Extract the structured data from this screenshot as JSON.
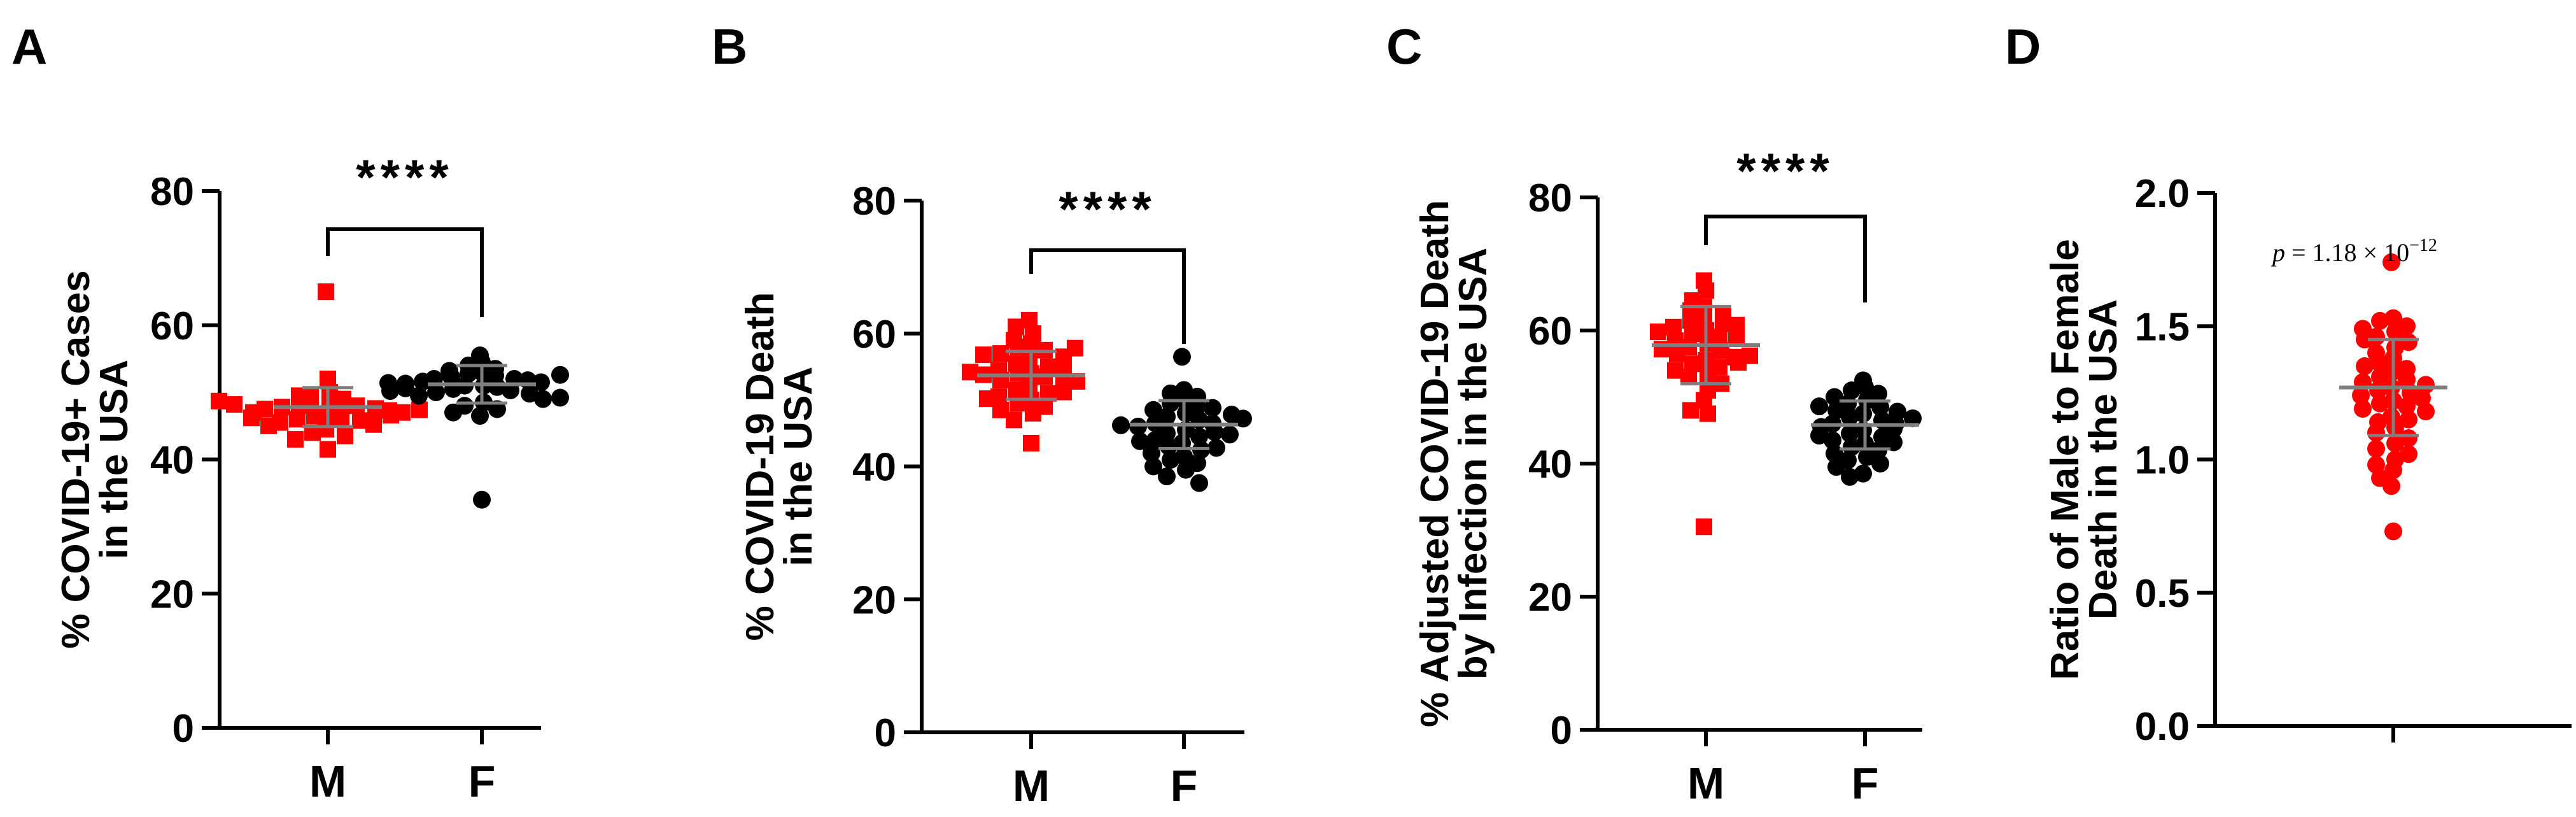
{
  "figure": {
    "colors": {
      "male": "#ff0000",
      "female": "#000000",
      "axis": "#000000",
      "errorbar_on_points": "#7f7f7f"
    }
  },
  "chart_data": [
    {
      "panel": "A",
      "type": "scatter",
      "ylabel_lines": [
        "% COVID-19+ Cases",
        "in the USA"
      ],
      "categories": [
        "M",
        "F"
      ],
      "ylim": [
        0,
        80
      ],
      "yticks": [
        "0",
        "20",
        "40",
        "60",
        "80"
      ],
      "significance": "****",
      "series": [
        {
          "name": "M",
          "color": "#ff0000",
          "marker": "square",
          "mean": 47.8,
          "sd": 2.9,
          "values": [
            65,
            52,
            50,
            49.5,
            49,
            48.8,
            48.5,
            48.3,
            48,
            48,
            47.8,
            47.6,
            47.5,
            47.3,
            47,
            47,
            46.8,
            46.5,
            46.3,
            46,
            45.8,
            45.5,
            45.2,
            45,
            44.5,
            44,
            43.5,
            43,
            41.5,
            49.5,
            48.2,
            47.4,
            46.6,
            48.7,
            46.2
          ]
        },
        {
          "name": "F",
          "color": "#000000",
          "marker": "circle",
          "mean": 51.2,
          "sd": 2.8,
          "values": [
            55.5,
            54.5,
            54,
            53.5,
            53,
            52.8,
            52.5,
            52.3,
            52,
            52,
            51.8,
            51.6,
            51.5,
            51.3,
            51,
            51,
            50.8,
            50.5,
            50.3,
            50,
            49.8,
            49.5,
            49,
            48.5,
            48,
            47.5,
            47,
            46.5,
            34,
            52.6,
            51.4,
            50.6,
            49.2,
            53.2,
            50.2
          ]
        }
      ]
    },
    {
      "panel": "B",
      "type": "scatter",
      "ylabel_lines": [
        "% COVID-19 Death",
        "in the USA"
      ],
      "categories": [
        "M",
        "F"
      ],
      "ylim": [
        0,
        80
      ],
      "yticks": [
        "0",
        "20",
        "40",
        "60",
        "80"
      ],
      "significance": "****",
      "series": [
        {
          "name": "M",
          "color": "#ff0000",
          "marker": "square",
          "mean": 53.7,
          "sd": 3.6,
          "values": [
            62,
            61,
            60,
            59,
            58.5,
            58,
            57.5,
            57,
            56.5,
            56,
            55.5,
            55,
            54.5,
            54,
            54,
            53.5,
            53,
            52.5,
            52,
            51.5,
            51,
            50.5,
            50,
            49.5,
            49,
            48.5,
            48,
            47,
            43.5,
            55.2,
            53.8,
            52.8,
            51.2,
            56.8,
            54.2,
            50.2,
            57.8
          ]
        },
        {
          "name": "F",
          "color": "#000000",
          "marker": "circle",
          "mean": 46.3,
          "sd": 3.6,
          "values": [
            56.5,
            51.5,
            51,
            50.5,
            50,
            49.5,
            49,
            48.5,
            48,
            47.5,
            47,
            46.5,
            46.5,
            46,
            45.5,
            45,
            44.5,
            44,
            43.5,
            43,
            42.5,
            42,
            41.5,
            41,
            40.5,
            40,
            39.5,
            38.5,
            37.5,
            47.8,
            46.2,
            45.2,
            43.8,
            48.8,
            44.8,
            42.8,
            47.2
          ]
        }
      ]
    },
    {
      "panel": "C",
      "type": "scatter",
      "ylabel_lines": [
        "% Adjusted COVID-19 Death",
        "by Infection in the USA"
      ],
      "categories": [
        "M",
        "F"
      ],
      "ylim": [
        0,
        80
      ],
      "yticks": [
        "0",
        "20",
        "40",
        "60",
        "80"
      ],
      "significance": "****",
      "series": [
        {
          "name": "M",
          "color": "#ff0000",
          "marker": "square",
          "mean": 57.8,
          "sd": 5.8,
          "values": [
            67.5,
            66,
            64.5,
            63.5,
            63,
            62.5,
            62,
            61.5,
            61,
            60.5,
            60,
            59.5,
            59,
            58.5,
            58,
            57.5,
            57,
            56.5,
            56,
            55.5,
            55,
            54.5,
            54,
            53.5,
            53,
            52,
            51,
            49.5,
            48,
            47.5,
            30.5,
            58.8,
            57.2,
            56.2,
            60.8,
            55.2,
            59.8
          ]
        },
        {
          "name": "F",
          "color": "#000000",
          "marker": "circle",
          "mean": 45.8,
          "sd": 3.6,
          "values": [
            52.5,
            51.5,
            51,
            50.5,
            50,
            49.5,
            49,
            48.5,
            48,
            47.5,
            47,
            46.5,
            46,
            46,
            45.5,
            45,
            44.5,
            44,
            43.5,
            43,
            42.5,
            42,
            41.5,
            41,
            40.5,
            40,
            39.5,
            38.5,
            38,
            46.8,
            45.2,
            44.2,
            47.8,
            43.2,
            48.6
          ]
        }
      ]
    },
    {
      "panel": "D",
      "type": "scatter",
      "ylabel_lines": [
        "Ratio of Male to Female",
        "Death in the USA"
      ],
      "categories": [
        ""
      ],
      "ylim": [
        0,
        2.0
      ],
      "yticks": [
        "0.0",
        "0.5",
        "1.0",
        "1.5",
        "2.0"
      ],
      "annotation": {
        "p_symbol": "p",
        "text": " = 1.18 × 10",
        "exponent": "−12"
      },
      "series": [
        {
          "name": "Ratio",
          "color": "#ff0000",
          "marker": "circle",
          "mean": 1.27,
          "sd": 0.18,
          "values": [
            1.74,
            1.53,
            1.52,
            1.5,
            1.49,
            1.48,
            1.46,
            1.44,
            1.42,
            1.4,
            1.38,
            1.36,
            1.34,
            1.33,
            1.31,
            1.3,
            1.29,
            1.28,
            1.27,
            1.26,
            1.25,
            1.24,
            1.22,
            1.21,
            1.2,
            1.19,
            1.18,
            1.16,
            1.14,
            1.12,
            1.1,
            1.08,
            1.06,
            1.04,
            1.02,
            1.0,
            0.98,
            0.96,
            0.93,
            0.9,
            0.73,
            1.35,
            1.23,
            1.15,
            1.45
          ]
        }
      ]
    }
  ]
}
